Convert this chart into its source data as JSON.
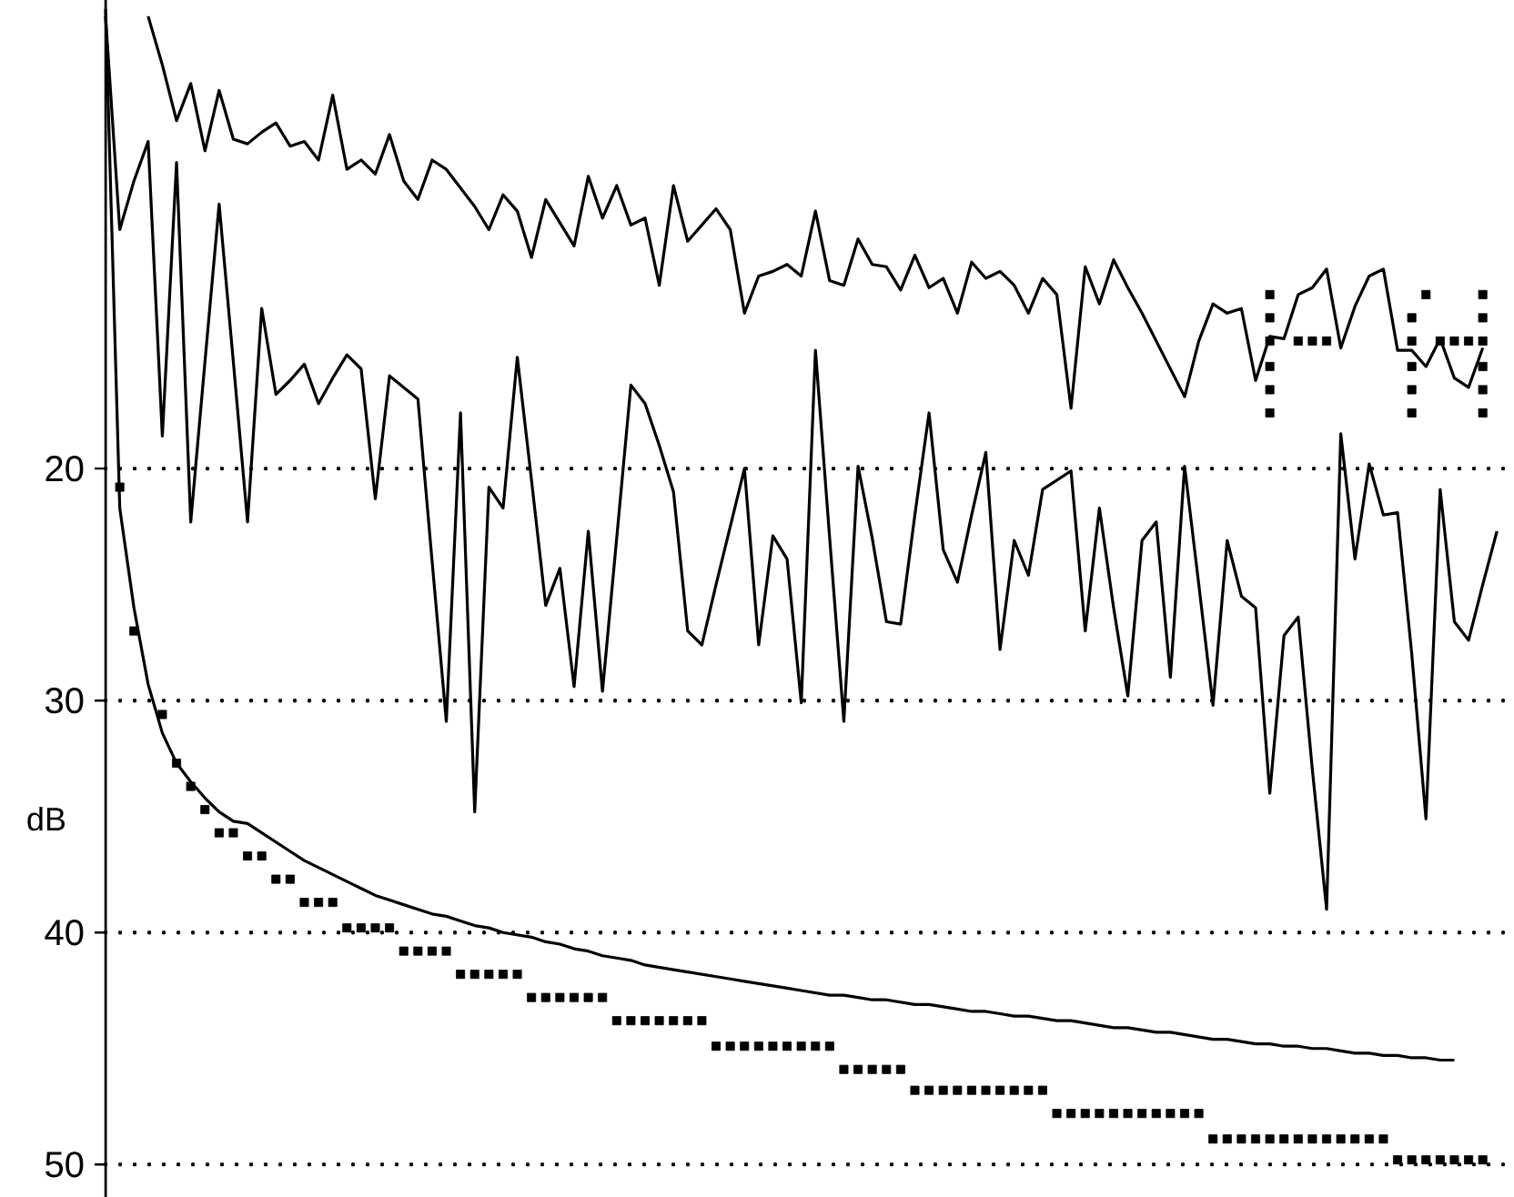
{
  "chart_data": {
    "type": "line",
    "ylabel": "dB",
    "categories": [
      null,
      null,
      null,
      null,
      null,
      null,
      null,
      null,
      null,
      null,
      null,
      null,
      null,
      null,
      null,
      null,
      null,
      null,
      null,
      null,
      null,
      null,
      null,
      null,
      null,
      null,
      null,
      null,
      null,
      null,
      null,
      null,
      null,
      null,
      null,
      null,
      null,
      null,
      null,
      null,
      null,
      null,
      null,
      null,
      null,
      null,
      null,
      null,
      null,
      null,
      null,
      null,
      null,
      null,
      null,
      null,
      null,
      null,
      null,
      null,
      null,
      null,
      null,
      null,
      null,
      null,
      null,
      null,
      null,
      null,
      null,
      null,
      null,
      null,
      null,
      null,
      null,
      null,
      null,
      null,
      null,
      null,
      null,
      null,
      null,
      null,
      null,
      null,
      null,
      null,
      null,
      null,
      null,
      null,
      null,
      null,
      null,
      null,
      null
    ],
    "ylim": [
      51.4,
      -0.2
    ],
    "yticks": [
      20,
      30,
      40,
      50
    ],
    "grid": true,
    "series": [
      {
        "color": "#000000",
        "values": [
          null,
          null,
          null,
          0.5,
          2.6,
          5.0,
          3.4,
          6.3,
          3.7,
          5.8,
          6.0,
          5.5,
          5.1,
          6.1,
          5.9,
          6.7,
          3.9,
          7.1,
          6.7,
          7.3,
          5.6,
          7.6,
          8.4,
          6.7,
          7.1,
          7.9,
          8.7,
          9.7,
          8.2,
          8.9,
          10.9,
          8.4,
          9.4,
          10.4,
          7.4,
          9.2,
          7.8,
          9.5,
          9.2,
          12.1,
          7.8,
          10.2,
          9.5,
          8.8,
          9.7,
          13.3,
          11.7,
          11.5,
          11.2,
          11.7,
          8.9,
          11.9,
          12.1,
          10.1,
          11.2,
          11.3,
          12.3,
          10.8,
          12.2,
          11.8,
          13.3,
          11.1,
          11.8,
          11.5,
          12.1,
          13.3,
          11.8,
          12.5,
          17.4,
          11.3,
          12.9,
          11.0,
          12.2,
          13.3,
          14.5,
          15.7,
          16.9,
          14.5,
          12.9,
          13.3,
          13.1,
          16.2,
          14.3,
          14.4,
          12.5,
          12.2,
          11.4,
          14.8,
          13.0,
          11.7,
          11.4,
          14.9,
          14.9,
          15.6,
          14.4,
          16.1,
          16.5,
          14.8,
          null
        ]
      },
      {
        "color": "#000000",
        "values": [
          0.5,
          9.7,
          7.6,
          5.9,
          18.6,
          6.8,
          22.3,
          15.4,
          8.6,
          15.4,
          22.3,
          13.1,
          16.8,
          16.2,
          15.5,
          17.2,
          16.1,
          15.1,
          15.7,
          21.3,
          16.0,
          16.5,
          17.0,
          24.0,
          30.9,
          17.6,
          34.8,
          20.8,
          21.7,
          15.2,
          20.5,
          25.9,
          24.3,
          29.4,
          22.7,
          29.6,
          23.0,
          16.4,
          17.2,
          19.0,
          21.0,
          27.0,
          27.6,
          25.0,
          22.5,
          20.0,
          27.6,
          22.9,
          23.9,
          30.1,
          14.9,
          23.0,
          30.9,
          19.9,
          23.0,
          26.6,
          26.7,
          22.0,
          17.6,
          23.5,
          24.9,
          22.0,
          19.3,
          27.8,
          23.1,
          24.6,
          20.9,
          20.5,
          20.1,
          27.0,
          21.7,
          26.0,
          29.8,
          23.1,
          22.3,
          29.0,
          19.9,
          25.0,
          30.2,
          23.1,
          25.5,
          26.0,
          34.0,
          27.2,
          26.4,
          33.0,
          39.0,
          18.5,
          23.9,
          19.8,
          22.0,
          21.9,
          28.0,
          35.1,
          20.9,
          26.6,
          27.4,
          25.0,
          22.7
        ]
      },
      {
        "color": "#000000",
        "values": [
          0.2,
          21.7,
          26.0,
          29.3,
          31.4,
          32.7,
          33.5,
          34.2,
          34.8,
          35.2,
          35.3,
          35.7,
          36.1,
          36.5,
          36.9,
          37.2,
          37.5,
          37.8,
          38.1,
          38.4,
          38.6,
          38.8,
          39.0,
          39.2,
          39.3,
          39.5,
          39.7,
          39.8,
          40.0,
          40.1,
          40.2,
          40.4,
          40.5,
          40.7,
          40.8,
          41.0,
          41.1,
          41.2,
          41.4,
          41.5,
          41.6,
          41.7,
          41.8,
          41.9,
          42.0,
          42.1,
          42.2,
          42.3,
          42.4,
          42.5,
          42.6,
          42.7,
          42.7,
          42.8,
          42.9,
          42.9,
          43.0,
          43.1,
          43.1,
          43.2,
          43.3,
          43.4,
          43.4,
          43.5,
          43.6,
          43.6,
          43.7,
          43.8,
          43.8,
          43.9,
          44.0,
          44.1,
          44.1,
          44.2,
          44.3,
          44.3,
          44.4,
          44.5,
          44.6,
          44.6,
          44.7,
          44.8,
          44.8,
          44.9,
          44.9,
          45.0,
          45.0,
          45.1,
          45.2,
          45.2,
          45.3,
          45.3,
          45.4,
          45.4,
          45.5,
          45.5,
          null,
          null,
          null
        ]
      },
      {
        "type": "scatter",
        "marker": "square",
        "color": "#000000",
        "values": [
          null,
          20.8,
          27.0,
          null,
          30.6,
          32.7,
          33.7,
          34.7,
          35.7,
          35.7,
          36.7,
          36.7,
          37.7,
          37.7,
          38.7,
          38.7,
          38.7,
          39.8,
          39.8,
          39.8,
          39.8,
          40.8,
          40.8,
          40.8,
          40.8,
          41.8,
          41.8,
          41.8,
          41.8,
          41.8,
          42.8,
          42.8,
          42.8,
          42.8,
          42.8,
          42.8,
          43.8,
          43.8,
          43.8,
          43.8,
          43.8,
          43.8,
          43.8,
          44.9,
          44.9,
          44.9,
          44.9,
          44.9,
          44.9,
          44.9,
          44.9,
          44.9,
          45.9,
          45.9,
          45.9,
          45.9,
          45.9,
          46.8,
          46.8,
          46.8,
          46.8,
          46.8,
          46.8,
          46.8,
          46.8,
          46.8,
          46.8,
          47.8,
          47.8,
          47.8,
          47.8,
          47.8,
          47.8,
          47.8,
          47.8,
          47.8,
          47.8,
          47.8,
          48.9,
          48.9,
          48.9,
          48.9,
          48.9,
          48.9,
          48.9,
          48.9,
          48.9,
          48.9,
          48.9,
          48.9,
          48.9,
          49.8,
          49.8,
          49.8,
          49.8,
          49.8,
          49.8,
          49.8,
          null
        ]
      },
      {
        "type": "scatter",
        "marker": "square",
        "color": "#000000",
        "values": [
          null,
          null,
          null,
          null,
          null,
          null,
          null,
          null,
          null,
          null,
          null,
          null,
          null,
          null,
          null,
          null,
          null,
          null,
          null,
          null,
          null,
          null,
          null,
          null,
          null,
          null,
          null,
          null,
          null,
          null,
          null,
          null,
          null,
          null,
          null,
          null,
          null,
          null,
          null,
          null,
          null,
          null,
          null,
          null,
          null,
          null,
          null,
          null,
          null,
          null,
          null,
          null,
          null,
          null,
          null,
          null,
          null,
          null,
          null,
          null,
          null,
          null,
          null,
          null,
          null,
          null,
          null,
          null,
          null,
          null,
          null,
          null,
          null,
          null,
          null,
          null,
          null,
          null,
          null,
          null,
          null,
          null,
          12.5,
          null,
          null,
          null,
          null,
          null,
          null,
          null,
          null,
          null,
          null,
          12.5,
          null,
          null,
          null,
          12.5,
          null
        ]
      },
      {
        "type": "scatter",
        "marker": "square",
        "color": "#000000",
        "values": [
          null,
          null,
          null,
          null,
          null,
          null,
          null,
          null,
          null,
          null,
          null,
          null,
          null,
          null,
          null,
          null,
          null,
          null,
          null,
          null,
          null,
          null,
          null,
          null,
          null,
          null,
          null,
          null,
          null,
          null,
          null,
          null,
          null,
          null,
          null,
          null,
          null,
          null,
          null,
          null,
          null,
          null,
          null,
          null,
          null,
          null,
          null,
          null,
          null,
          null,
          null,
          null,
          null,
          null,
          null,
          null,
          null,
          null,
          null,
          null,
          null,
          null,
          null,
          null,
          null,
          null,
          null,
          null,
          null,
          null,
          null,
          null,
          null,
          null,
          null,
          null,
          null,
          null,
          null,
          null,
          null,
          null,
          13.5,
          null,
          null,
          null,
          null,
          null,
          null,
          null,
          null,
          null,
          13.5,
          null,
          null,
          null,
          null,
          13.5,
          null
        ]
      },
      {
        "type": "scatter",
        "marker": "square",
        "color": "#000000",
        "values": [
          null,
          null,
          null,
          null,
          null,
          null,
          null,
          null,
          null,
          null,
          null,
          null,
          null,
          null,
          null,
          null,
          null,
          null,
          null,
          null,
          null,
          null,
          null,
          null,
          null,
          null,
          null,
          null,
          null,
          null,
          null,
          null,
          null,
          null,
          null,
          null,
          null,
          null,
          null,
          null,
          null,
          null,
          null,
          null,
          null,
          null,
          null,
          null,
          null,
          null,
          null,
          null,
          null,
          null,
          null,
          null,
          null,
          null,
          null,
          null,
          null,
          null,
          null,
          null,
          null,
          null,
          null,
          null,
          null,
          null,
          null,
          null,
          null,
          null,
          null,
          null,
          null,
          null,
          null,
          null,
          null,
          null,
          14.5,
          null,
          14.5,
          14.5,
          14.5,
          null,
          null,
          null,
          null,
          null,
          14.5,
          null,
          14.5,
          14.5,
          14.5,
          14.5,
          null
        ]
      },
      {
        "type": "scatter",
        "marker": "square",
        "color": "#000000",
        "values": [
          null,
          null,
          null,
          null,
          null,
          null,
          null,
          null,
          null,
          null,
          null,
          null,
          null,
          null,
          null,
          null,
          null,
          null,
          null,
          null,
          null,
          null,
          null,
          null,
          null,
          null,
          null,
          null,
          null,
          null,
          null,
          null,
          null,
          null,
          null,
          null,
          null,
          null,
          null,
          null,
          null,
          null,
          null,
          null,
          null,
          null,
          null,
          null,
          null,
          null,
          null,
          null,
          null,
          null,
          null,
          null,
          null,
          null,
          null,
          null,
          null,
          null,
          null,
          null,
          null,
          null,
          null,
          null,
          null,
          null,
          null,
          null,
          null,
          null,
          null,
          null,
          null,
          null,
          null,
          null,
          null,
          null,
          15.6,
          null,
          null,
          null,
          null,
          null,
          null,
          null,
          null,
          null,
          15.6,
          null,
          null,
          null,
          null,
          15.6,
          null
        ]
      },
      {
        "type": "scatter",
        "marker": "square",
        "color": "#000000",
        "values": [
          null,
          null,
          null,
          null,
          null,
          null,
          null,
          null,
          null,
          null,
          null,
          null,
          null,
          null,
          null,
          null,
          null,
          null,
          null,
          null,
          null,
          null,
          null,
          null,
          null,
          null,
          null,
          null,
          null,
          null,
          null,
          null,
          null,
          null,
          null,
          null,
          null,
          null,
          null,
          null,
          null,
          null,
          null,
          null,
          null,
          null,
          null,
          null,
          null,
          null,
          null,
          null,
          null,
          null,
          null,
          null,
          null,
          null,
          null,
          null,
          null,
          null,
          null,
          null,
          null,
          null,
          null,
          null,
          null,
          null,
          null,
          null,
          null,
          null,
          null,
          null,
          null,
          null,
          null,
          null,
          null,
          null,
          16.6,
          null,
          null,
          null,
          null,
          null,
          null,
          null,
          null,
          null,
          16.6,
          null,
          null,
          null,
          null,
          16.6,
          null
        ]
      },
      {
        "type": "scatter",
        "marker": "square",
        "color": "#000000",
        "values": [
          null,
          null,
          null,
          null,
          null,
          null,
          null,
          null,
          null,
          null,
          null,
          null,
          null,
          null,
          null,
          null,
          null,
          null,
          null,
          null,
          null,
          null,
          null,
          null,
          null,
          null,
          null,
          null,
          null,
          null,
          null,
          null,
          null,
          null,
          null,
          null,
          null,
          null,
          null,
          null,
          null,
          null,
          null,
          null,
          null,
          null,
          null,
          null,
          null,
          null,
          null,
          null,
          null,
          null,
          null,
          null,
          null,
          null,
          null,
          null,
          null,
          null,
          null,
          null,
          null,
          null,
          null,
          null,
          null,
          null,
          null,
          null,
          null,
          null,
          null,
          null,
          null,
          null,
          null,
          null,
          null,
          null,
          17.6,
          null,
          null,
          null,
          null,
          null,
          null,
          null,
          null,
          null,
          17.6,
          null,
          null,
          null,
          null,
          17.6,
          null
        ]
      }
    ]
  }
}
